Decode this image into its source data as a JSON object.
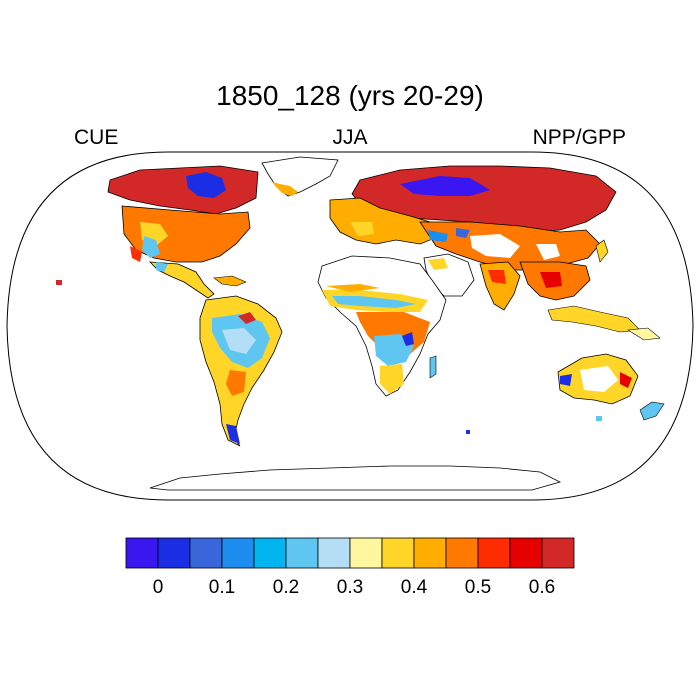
{
  "title": "1850_128 (yrs 20-29)",
  "left_label": "CUE",
  "center_label": "JJA",
  "right_label": "NPP/GPP",
  "colorbar": {
    "colors": [
      "#3a16f0",
      "#1b2ee6",
      "#3a66dc",
      "#1e8df0",
      "#00b4f0",
      "#5ec6f0",
      "#b4def6",
      "#fff6a0",
      "#ffd628",
      "#ffad00",
      "#ff7800",
      "#ff2c00",
      "#e60000",
      "#d22828"
    ],
    "tick_labels": [
      "0",
      "0.1",
      "0.2",
      "0.3",
      "0.4",
      "0.5",
      "0.6"
    ]
  },
  "map": {
    "projection": "Robinson",
    "ocean_color": "#ffffff",
    "coastline_color": "#000000"
  }
}
